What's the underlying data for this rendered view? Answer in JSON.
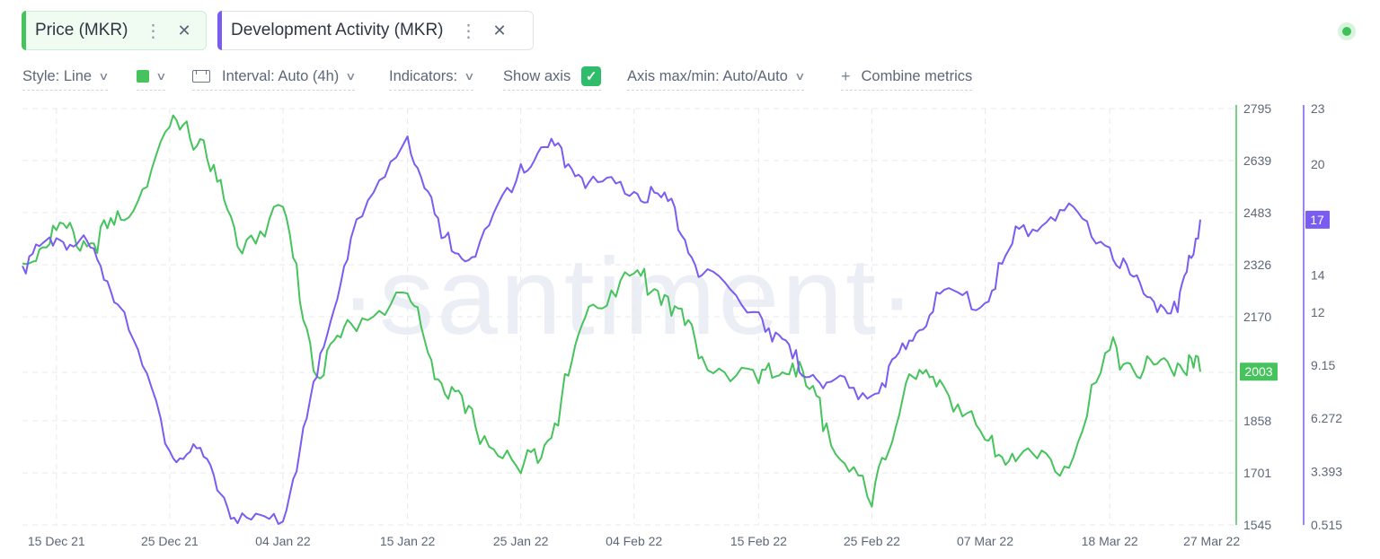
{
  "chips": [
    {
      "label": "Price (MKR)",
      "color": "#46c35c"
    },
    {
      "label": "Development Activity (MKR)",
      "color": "#7b5cf0"
    }
  ],
  "toolbar": {
    "style": "Style: Line",
    "interval": "Interval: Auto (4h)",
    "indicators": "Indicators:",
    "show_axis": "Show axis",
    "axis_maxmin": "Axis max/min: Auto/Auto",
    "combine": "Combine metrics"
  },
  "watermark": "·santiment·",
  "chart_data": {
    "type": "line",
    "x": [
      "2021-12-12",
      "2021-12-15",
      "2021-12-18",
      "2021-12-21",
      "2021-12-25",
      "2021-12-28",
      "2021-12-31",
      "2022-01-04",
      "2022-01-07",
      "2022-01-10",
      "2022-01-15",
      "2022-01-18",
      "2022-01-21",
      "2022-01-25",
      "2022-01-28",
      "2022-01-31",
      "2022-02-04",
      "2022-02-07",
      "2022-02-10",
      "2022-02-15",
      "2022-02-18",
      "2022-02-21",
      "2022-02-25",
      "2022-02-28",
      "2022-03-03",
      "2022-03-07",
      "2022-03-10",
      "2022-03-14",
      "2022-03-18",
      "2022-03-21",
      "2022-03-24",
      "2022-03-26"
    ],
    "x_tick_labels": [
      "15 Dec 21",
      "25 Dec 21",
      "04 Jan 22",
      "15 Jan 22",
      "25 Jan 22",
      "04 Feb 22",
      "15 Feb 22",
      "25 Feb 22",
      "07 Mar 22",
      "18 Mar 22",
      "27 Mar 22"
    ],
    "series": [
      {
        "name": "Price (MKR)",
        "color": "#46c35c",
        "axis": "left",
        "last_value_label": "2003",
        "values": [
          2330,
          2430,
          2390,
          2460,
          2740,
          2700,
          2380,
          2500,
          1990,
          2150,
          2240,
          1970,
          1840,
          1700,
          1850,
          2200,
          2300,
          2230,
          2050,
          1970,
          2030,
          1850,
          1600,
          1970,
          1980,
          1800,
          1750,
          1720,
          2070,
          2010,
          2030,
          2005
        ]
      },
      {
        "name": "Development Activity (MKR)",
        "color": "#7b5cf0",
        "axis": "right",
        "last_value_label": "17",
        "values": [
          14.5,
          16.0,
          15.5,
          12.0,
          4.5,
          4.2,
          0.6,
          0.7,
          8.5,
          16.0,
          21.5,
          16.0,
          15.0,
          20.0,
          21.0,
          19.0,
          18.5,
          18.0,
          14.0,
          12.0,
          9.5,
          8.2,
          7.5,
          10.0,
          13.0,
          12.5,
          16.5,
          17.5,
          15.5,
          13.0,
          12.0,
          17.0
        ]
      }
    ],
    "y_left": {
      "ticks": [
        "2795",
        "2639",
        "2483",
        "2326",
        "2170",
        "2003",
        "1858",
        "1701",
        "1545"
      ],
      "ylim": [
        1545,
        2795
      ]
    },
    "y_right": {
      "ticks": [
        "23",
        "20",
        "17",
        "14",
        "12",
        "9.15",
        "6.272",
        "3.393",
        "0.515"
      ],
      "ylim": [
        0.515,
        23
      ]
    },
    "grid": true
  }
}
